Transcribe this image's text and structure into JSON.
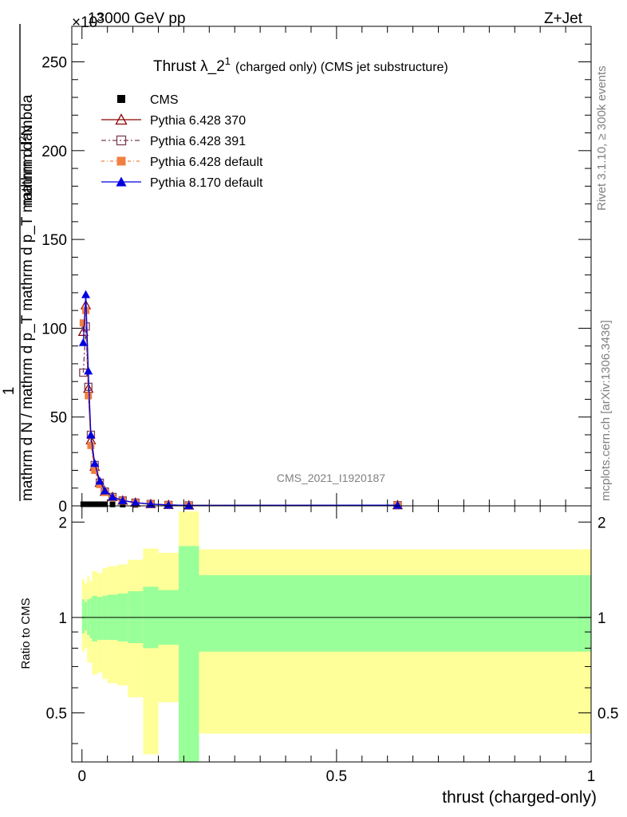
{
  "header": {
    "left": "13000 GeV pp",
    "right": "Z+Jet",
    "exponent": "×10^3"
  },
  "side_labels": {
    "rivet": "Rivet 3.1.10, ≥ 300k events",
    "mcplots": "mcplots.cern.ch [arXiv:1306.3436]"
  },
  "watermark": "CMS_2021_I1920187",
  "chart_data": [
    {
      "type": "line",
      "title": "Thrust λ_2^1 (charged only) (CMS jet substructure)",
      "title_main": "Thrust λ_2",
      "title_sup": "1",
      "title_rest": "(charged only) (CMS jet substructure)",
      "ylabel_numerator": "1",
      "ylabel_numerator_2": "mathrm d²N",
      "ylabel_denominator": "mathrm d N / mathrm d p_T mathrm d p_T mathrm d lambda",
      "y_multiplier": "×10^3",
      "xlim": [
        -0.02,
        1.0
      ],
      "ylim": [
        0,
        270
      ],
      "yticks": [
        0,
        50,
        100,
        150,
        200,
        250
      ],
      "legend_position": "top-left",
      "series": [
        {
          "name": "CMS",
          "color": "#000000",
          "marker": "square-filled",
          "x": [
            0.0025,
            0.0075,
            0.0125,
            0.0175,
            0.025,
            0.035,
            0.045,
            0.06,
            0.08,
            0.105,
            0.135,
            0.17,
            0.21,
            0.62
          ],
          "y": [
            0.9,
            0.9,
            0.9,
            0.9,
            0.9,
            0.9,
            0.9,
            0.8,
            0.7,
            0.6,
            0.4,
            0.3,
            0.2,
            0.05
          ]
        },
        {
          "name": "Pythia 6.428 370",
          "color": "#8b0000",
          "marker": "triangle-open",
          "x": [
            0.0025,
            0.0075,
            0.0125,
            0.0175,
            0.025,
            0.035,
            0.045,
            0.06,
            0.08,
            0.105,
            0.135,
            0.17,
            0.21,
            0.62
          ],
          "y": [
            98,
            113,
            66,
            37,
            22,
            13,
            8,
            5,
            3,
            1.8,
            1.0,
            0.5,
            0.25,
            0.4
          ]
        },
        {
          "name": "Pythia 6.428 391",
          "color": "#7b3f55",
          "marker": "square-open",
          "x": [
            0.0025,
            0.0075,
            0.0125,
            0.0175,
            0.025,
            0.035,
            0.045,
            0.06,
            0.08,
            0.105,
            0.135,
            0.17,
            0.21,
            0.62
          ],
          "y": [
            75,
            101,
            67,
            40,
            23,
            13,
            8,
            5,
            3,
            1.8,
            1.0,
            0.5,
            0.25,
            0.4
          ]
        },
        {
          "name": "Pythia 6.428 default",
          "color": "#f08040",
          "marker": "square-filled",
          "x": [
            0.0025,
            0.0075,
            0.0125,
            0.0175,
            0.025,
            0.035,
            0.045,
            0.06,
            0.08,
            0.105,
            0.135,
            0.17,
            0.21,
            0.62
          ],
          "y": [
            103,
            110,
            62,
            34,
            20,
            12,
            7.5,
            4.5,
            2.8,
            1.7,
            0.9,
            0.5,
            0.25,
            0.4
          ]
        },
        {
          "name": "Pythia 8.170 default",
          "color": "#0000e0",
          "marker": "triangle-filled",
          "x": [
            0.0025,
            0.0075,
            0.0125,
            0.0175,
            0.025,
            0.035,
            0.045,
            0.06,
            0.08,
            0.105,
            0.135,
            0.17,
            0.21,
            0.62
          ],
          "y": [
            92,
            119,
            76,
            40,
            24,
            14,
            8.5,
            5,
            3,
            1.8,
            1.0,
            0.5,
            0.25,
            0.4
          ]
        }
      ]
    },
    {
      "type": "area",
      "ylabel": "Ratio to CMS",
      "xlabel": "thrust (charged-only)",
      "xlim": [
        -0.02,
        1.0
      ],
      "ylim": [
        0.35,
        2.25
      ],
      "yticks": [
        0.5,
        1,
        2
      ],
      "xticks": [
        0,
        0.5,
        1
      ],
      "reference_line": 1,
      "bins": [
        {
          "x0": 0.0,
          "x1": 0.005,
          "stat_lo": 0.89,
          "stat_hi": 1.14,
          "tot_lo": 0.78,
          "tot_hi": 1.32
        },
        {
          "x0": 0.005,
          "x1": 0.01,
          "stat_lo": 0.91,
          "stat_hi": 1.12,
          "tot_lo": 0.8,
          "tot_hi": 1.28
        },
        {
          "x0": 0.01,
          "x1": 0.015,
          "stat_lo": 0.88,
          "stat_hi": 1.14,
          "tot_lo": 0.72,
          "tot_hi": 1.35
        },
        {
          "x0": 0.015,
          "x1": 0.02,
          "stat_lo": 0.86,
          "stat_hi": 1.15,
          "tot_lo": 0.72,
          "tot_hi": 1.3
        },
        {
          "x0": 0.02,
          "x1": 0.03,
          "stat_lo": 0.84,
          "stat_hi": 1.17,
          "tot_lo": 0.66,
          "tot_hi": 1.4
        },
        {
          "x0": 0.03,
          "x1": 0.04,
          "stat_lo": 0.85,
          "stat_hi": 1.16,
          "tot_lo": 0.67,
          "tot_hi": 1.38
        },
        {
          "x0": 0.04,
          "x1": 0.05,
          "stat_lo": 0.85,
          "stat_hi": 1.17,
          "tot_lo": 0.64,
          "tot_hi": 1.43
        },
        {
          "x0": 0.05,
          "x1": 0.07,
          "stat_lo": 0.85,
          "stat_hi": 1.18,
          "tot_lo": 0.62,
          "tot_hi": 1.45
        },
        {
          "x0": 0.07,
          "x1": 0.09,
          "stat_lo": 0.84,
          "stat_hi": 1.19,
          "tot_lo": 0.61,
          "tot_hi": 1.47
        },
        {
          "x0": 0.09,
          "x1": 0.12,
          "stat_lo": 0.83,
          "stat_hi": 1.21,
          "tot_lo": 0.56,
          "tot_hi": 1.52
        },
        {
          "x0": 0.12,
          "x1": 0.15,
          "stat_lo": 0.8,
          "stat_hi": 1.25,
          "tot_lo": 0.37,
          "tot_hi": 1.65
        },
        {
          "x0": 0.15,
          "x1": 0.19,
          "stat_lo": 0.82,
          "stat_hi": 1.22,
          "tot_lo": 0.54,
          "tot_hi": 1.6
        },
        {
          "x0": 0.19,
          "x1": 0.23,
          "stat_lo": 0.3,
          "stat_hi": 1.68,
          "tot_lo": 0.3,
          "tot_hi": 2.16
        },
        {
          "x0": 0.23,
          "x1": 1.0,
          "stat_lo": 0.78,
          "stat_hi": 1.36,
          "tot_lo": 0.43,
          "tot_hi": 1.64
        }
      ],
      "colors": {
        "stat": "#99ff99",
        "total": "#ffff99"
      }
    }
  ]
}
